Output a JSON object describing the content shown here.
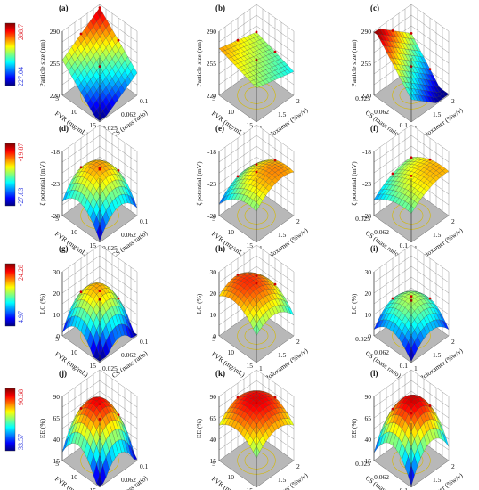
{
  "colors": {
    "scale_low": "#1a3cf0",
    "scale_high": "#ff1a1a",
    "colorbar_max_text": "#e0202a",
    "colorbar_min_text": "#2a36e0",
    "grid": "#6a6a6a",
    "floor": "#b8b8b8"
  },
  "chart_data": [
    {
      "panel": "(a)",
      "type": "surface",
      "zlabel": "Particle size (nm)",
      "zticks": [
        "220",
        "255",
        "290"
      ],
      "xlabel": "FVR (mg/mL)",
      "xticks": [
        "5",
        "10",
        "15"
      ],
      "ylabel": "CS (mass ratio)",
      "yticks": [
        "0.025",
        "0.062",
        "0.1"
      ],
      "colorbar": {
        "max": "288.7",
        "min": "227.04"
      },
      "surface": {
        "base": 0.45,
        "sx": 0.3,
        "sy": 0.2,
        "q": 0
      }
    },
    {
      "panel": "(b)",
      "type": "surface",
      "zlabel": "Particle size (nm)",
      "zticks": [
        "220",
        "255",
        "290"
      ],
      "xlabel": "FVR (mg/mL)",
      "xticks": [
        "5",
        "10",
        "15"
      ],
      "ylabel": "Poloxamer (%w/v)",
      "yticks": [
        "1",
        "1.5",
        "2"
      ],
      "surface": {
        "base": 0.55,
        "sx": 0.1,
        "sy": -0.08,
        "q": 0
      }
    },
    {
      "panel": "(c)",
      "type": "surface",
      "zlabel": "Particle size (nm)",
      "zticks": [
        "220",
        "255",
        "290"
      ],
      "xlabel": "CS (mass ratio)",
      "xticks": [
        "0.025",
        "0.062",
        "0.1"
      ],
      "ylabel": "Poloxamer (%w/v)",
      "yticks": [
        "1",
        "1.5",
        "2"
      ],
      "surface": {
        "base": 0.45,
        "sx": 0.35,
        "sy": -0.25,
        "q": 0
      }
    },
    {
      "panel": "(d)",
      "type": "surface",
      "zlabel": "ζ potential (mV)",
      "zticks": [
        "-28",
        "-23",
        "-18"
      ],
      "xlabel": "FVR (mg/mL)",
      "xticks": [
        "5",
        "10",
        "15"
      ],
      "ylabel": "CS (mass ratio)",
      "yticks": [
        "0.025",
        "0.062",
        "0.1"
      ],
      "colorbar": {
        "max": "-19.87",
        "min": "-27.83"
      },
      "surface": {
        "base": 0.72,
        "sx": 0.1,
        "sy": 0.05,
        "q": 0.55
      }
    },
    {
      "panel": "(e)",
      "type": "surface",
      "zlabel": "ζ potential (mV)",
      "zticks": [
        "-28",
        "-23",
        "-18"
      ],
      "xlabel": "FVR (mg/mL)",
      "xticks": [
        "5",
        "10",
        "15"
      ],
      "ylabel": "Poloxamer (%w/v)",
      "yticks": [
        "1",
        "1.5",
        "2"
      ],
      "surface": {
        "base": 0.68,
        "sx": -0.15,
        "sy": 0.1,
        "q": 0.25
      }
    },
    {
      "panel": "(f)",
      "type": "surface",
      "zlabel": "ζ potential (mV)",
      "zticks": [
        "-28",
        "-23",
        "-18"
      ],
      "xlabel": "CS (mass ratio)",
      "xticks": [
        "0.025",
        "0.062",
        "0.1"
      ],
      "ylabel": "Poloxamer (%w/v)",
      "yticks": [
        "1",
        "1.5",
        "2"
      ],
      "surface": {
        "base": 0.62,
        "sx": -0.1,
        "sy": 0.12,
        "q": 0.15
      }
    },
    {
      "panel": "(g)",
      "type": "surface",
      "zlabel": "LC (%)",
      "zticks": [
        "0",
        "10",
        "20",
        "30"
      ],
      "xlabel": "FVR (mg/mL)",
      "xticks": [
        "5",
        "10",
        "15"
      ],
      "ylabel": "CS (mass ratio)",
      "yticks": [
        "0.025",
        "0.062",
        "0.1"
      ],
      "colorbar": {
        "max": "24.28",
        "min": "4.97"
      },
      "surface": {
        "base": 0.7,
        "sx": 0.15,
        "sy": 0.05,
        "q": 0.75
      }
    },
    {
      "panel": "(h)",
      "type": "surface",
      "zlabel": "LC (%)",
      "zticks": [
        "0",
        "10",
        "20",
        "30"
      ],
      "xlabel": "FVR (mg/mL)",
      "xticks": [
        "5",
        "10",
        "15"
      ],
      "ylabel": "Poloxamer (%w/v)",
      "yticks": [
        "1",
        "1.5",
        "2"
      ],
      "surface": {
        "base": 0.82,
        "sx": 0.1,
        "sy": -0.05,
        "q": 0.35
      }
    },
    {
      "panel": "(i)",
      "type": "surface",
      "zlabel": "LC (%)",
      "zticks": [
        "0",
        "10",
        "20",
        "30"
      ],
      "xlabel": "CS (mass ratio)",
      "xticks": [
        "0.025",
        "0.062",
        "0.1"
      ],
      "ylabel": "Poloxamer (%w/v)",
      "yticks": [
        "1",
        "1.5",
        "2"
      ],
      "surface": {
        "base": 0.55,
        "sx": 0.05,
        "sy": 0.05,
        "q": 0.45
      }
    },
    {
      "panel": "(j)",
      "type": "surface",
      "zlabel": "EE (%)",
      "zticks": [
        "15",
        "40",
        "65",
        "90"
      ],
      "xlabel": "FVR (mg/mL)",
      "xticks": [
        "5",
        "10",
        "15"
      ],
      "ylabel": "CS (mass ratio)",
      "yticks": [
        "0.025",
        "0.062",
        "0.1"
      ],
      "colorbar": {
        "max": "90.68",
        "min": "33.57"
      },
      "surface": {
        "base": 0.88,
        "sx": 0.15,
        "sy": 0.05,
        "q": 0.85
      }
    },
    {
      "panel": "(k)",
      "type": "surface",
      "zlabel": "EE (%)",
      "zticks": [
        "15",
        "40",
        "65",
        "90"
      ],
      "xlabel": "FVR (mg/mL)",
      "xticks": [
        "5",
        "10",
        "15"
      ],
      "ylabel": "Poloxamer (%w/v)",
      "yticks": [
        "1",
        "1.5",
        "2"
      ],
      "surface": {
        "base": 0.9,
        "sx": 0.05,
        "sy": 0.05,
        "q": 0.35
      }
    },
    {
      "panel": "(l)",
      "type": "surface",
      "zlabel": "EE (%)",
      "zticks": [
        "15",
        "40",
        "65",
        "90"
      ],
      "xlabel": "CS (mass ratio)",
      "xticks": [
        "0.025",
        "0.062",
        "0.1"
      ],
      "ylabel": "Poloxamer (%w/v)",
      "yticks": [
        "1",
        "1.5",
        "2"
      ],
      "surface": {
        "base": 0.92,
        "sx": 0.05,
        "sy": 0.1,
        "q": 0.75
      }
    }
  ]
}
